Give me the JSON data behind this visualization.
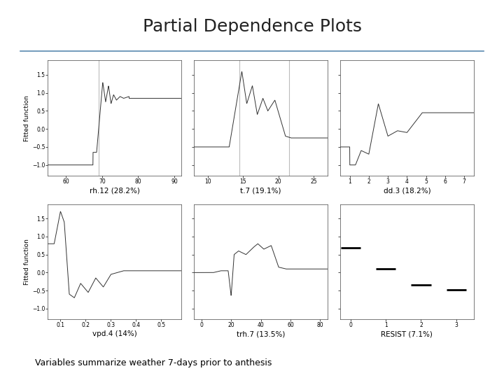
{
  "title": "Partial Dependence Plots",
  "title_fontsize": 18,
  "title_color": "#222222",
  "subtitle_text": "Variables summarize weather 7-days prior to anthesis",
  "subtitle_fontsize": 9,
  "line_color": "#333333",
  "vline_color": "#bbbbbb",
  "background": "#ffffff",
  "plots": [
    {
      "xlabel": "rh.12 (28.2%)",
      "xmin": 55,
      "xmax": 92,
      "xticks": [
        60,
        70,
        80,
        90
      ],
      "ymin": -1.3,
      "ymax": 1.9,
      "yticks": [
        -1.0,
        -0.5,
        0.0,
        0.5,
        1.0,
        1.5
      ],
      "vlines": [
        69
      ],
      "type": "line"
    },
    {
      "xlabel": "t.7 (19.1%)",
      "xmin": 8,
      "xmax": 27,
      "xticks": [
        10,
        15,
        20,
        25
      ],
      "ymin": -1.3,
      "ymax": 1.9,
      "yticks": [
        -1.0,
        -0.5,
        0.0,
        0.5,
        1.0,
        1.5
      ],
      "vlines": [
        14.5,
        21.5
      ],
      "type": "line"
    },
    {
      "xlabel": "dd.3 (18.2%)",
      "xmin": 0.5,
      "xmax": 7.5,
      "xticks": [
        1,
        2,
        3,
        4,
        5,
        6,
        7
      ],
      "ymin": -1.3,
      "ymax": 1.9,
      "yticks": [
        -1.0,
        -0.5,
        0.0,
        0.5,
        1.0,
        1.5
      ],
      "vlines": [],
      "type": "line"
    },
    {
      "xlabel": "vpd.4 (14%)",
      "xmin": 0.05,
      "xmax": 0.58,
      "xticks": [
        0.1,
        0.2,
        0.3,
        0.4,
        0.5
      ],
      "ymin": -1.3,
      "ymax": 1.9,
      "yticks": [
        -1.0,
        -0.5,
        0.0,
        0.5,
        1.0,
        1.5
      ],
      "vlines": [],
      "type": "line"
    },
    {
      "xlabel": "trh.7 (13.5%)",
      "xmin": -5,
      "xmax": 85,
      "xticks": [
        0,
        20,
        40,
        60,
        80
      ],
      "ymin": -1.3,
      "ymax": 1.9,
      "yticks": [
        -1.0,
        -0.5,
        0.0,
        0.5,
        1.0,
        1.5
      ],
      "vlines": [],
      "type": "line"
    },
    {
      "xlabel": "RESIST (7.1%)",
      "xmin": -0.3,
      "xmax": 3.5,
      "xticks": [
        0,
        1,
        2,
        3
      ],
      "ymin": -1.3,
      "ymax": 1.9,
      "yticks": [
        -1.0,
        -0.5,
        0.0,
        0.5,
        1.0,
        1.5
      ],
      "vlines": [],
      "type": "step"
    }
  ]
}
